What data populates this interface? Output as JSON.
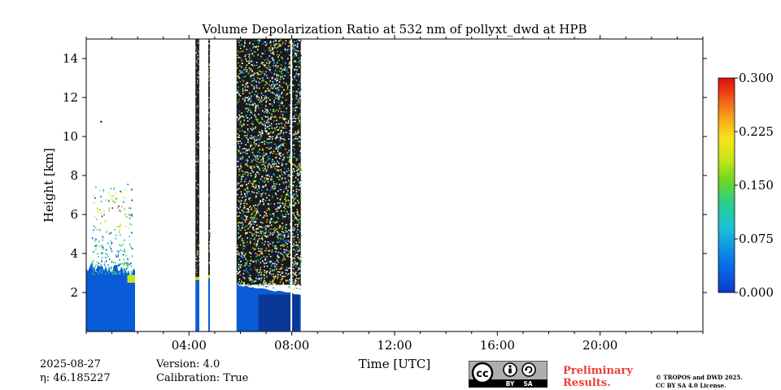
{
  "chart_data": {
    "type": "heatmap",
    "title": "Volume Depolarization Ratio at 532 nm of pollyxt_dwd at HPB",
    "xlabel": "Time [UTC]",
    "ylabel": "Height [km]",
    "xlim": [
      0,
      24
    ],
    "ylim": [
      0,
      15
    ],
    "x_ticks": [
      4,
      8,
      12,
      16,
      20
    ],
    "x_tick_labels": [
      "04:00",
      "08:00",
      "12:00",
      "16:00",
      "20:00"
    ],
    "x_minor_step": 1,
    "y_ticks": [
      2,
      4,
      6,
      8,
      10,
      12,
      14
    ],
    "y_tick_labels": [
      "2",
      "4",
      "6",
      "8",
      "10",
      "12",
      "14"
    ],
    "colorbar": {
      "vmin": 0.0,
      "vmax": 0.3,
      "ticks": [
        0.0,
        0.075,
        0.15,
        0.225,
        0.3
      ],
      "tick_labels": [
        "0.000",
        "0.075",
        "0.150",
        "0.225",
        "0.300"
      ],
      "colormap": "jet"
    },
    "segments": [
      {
        "name": "early-morning-boundary-layer",
        "t_start": 0.0,
        "t_end": 1.9,
        "base_top_km": 3.2,
        "note": "low depol aerosol with cloud/aerosol spikes up to ~7.8 km"
      },
      {
        "name": "noise-strip-1",
        "t_start": 4.25,
        "t_end": 4.4,
        "base_top_km": 2.6
      },
      {
        "name": "noise-strip-2",
        "t_start": 4.75,
        "t_end": 4.8,
        "base_top_km": 2.7
      },
      {
        "name": "noisy-morning-block",
        "t_start": 5.85,
        "t_end": 8.35,
        "base_top_km": 2.4,
        "gap_at": 7.95
      }
    ]
  },
  "footer": {
    "date": "2025-08-27",
    "eta_label": "η: 46.185227",
    "version": "Version: 4.0",
    "calibration": "Calibration: True",
    "preliminary_line1": "Preliminary",
    "preliminary_line2": "Results.",
    "copyright_line1": "© TROPOS and DWD 2025.",
    "copyright_line2": "CC BY SA 4.0 License.",
    "badge_by": "BY",
    "badge_sa": "SA"
  },
  "colors": {
    "low": "#0a5cd6",
    "prelim": "#e8403a"
  }
}
